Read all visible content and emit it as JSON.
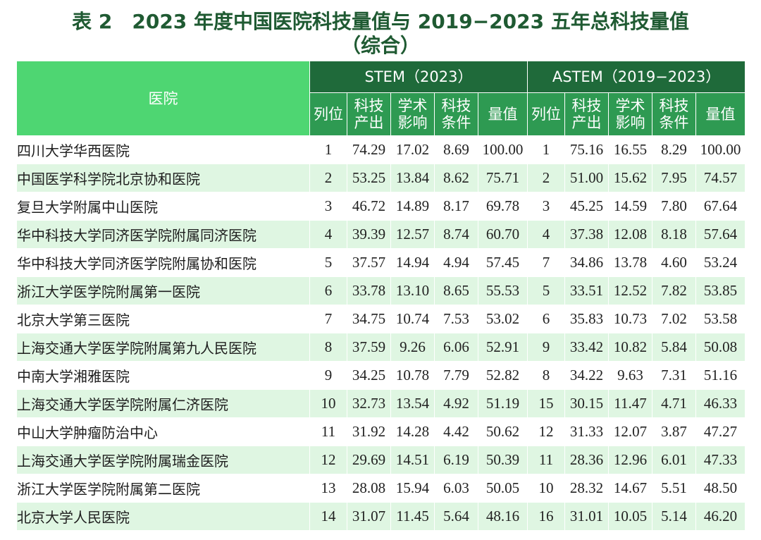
{
  "title": {
    "line1": "表 2　2023 年度中国医院科技量值与 2019−2023 五年总科技量值",
    "line2": "（综合）"
  },
  "table": {
    "hospital_header": "医院",
    "group_stem": "STEM（2023）",
    "group_astem": "ASTEM（2019−2023）",
    "sub_headers": [
      "列位",
      "科技\n产出",
      "学术\n影响",
      "科技\n条件",
      "量值"
    ],
    "rows": [
      {
        "name": "四川大学华西医院",
        "stem": [
          "1",
          "74.29",
          "17.02",
          "8.69",
          "100.00"
        ],
        "astem": [
          "1",
          "75.16",
          "16.55",
          "8.29",
          "100.00"
        ]
      },
      {
        "name": "中国医学科学院北京协和医院",
        "stem": [
          "2",
          "53.25",
          "13.84",
          "8.62",
          "75.71"
        ],
        "astem": [
          "2",
          "51.00",
          "15.62",
          "7.95",
          "74.57"
        ]
      },
      {
        "name": "复旦大学附属中山医院",
        "stem": [
          "3",
          "46.72",
          "14.89",
          "8.17",
          "69.78"
        ],
        "astem": [
          "3",
          "45.25",
          "14.59",
          "7.80",
          "67.64"
        ]
      },
      {
        "name": "华中科技大学同济医学院附属同济医院",
        "stem": [
          "4",
          "39.39",
          "12.57",
          "8.74",
          "60.70"
        ],
        "astem": [
          "4",
          "37.38",
          "12.08",
          "8.18",
          "57.64"
        ]
      },
      {
        "name": "华中科技大学同济医学院附属协和医院",
        "stem": [
          "5",
          "37.57",
          "14.94",
          "4.94",
          "57.45"
        ],
        "astem": [
          "7",
          "34.86",
          "13.78",
          "4.60",
          "53.24"
        ]
      },
      {
        "name": "浙江大学医学院附属第一医院",
        "stem": [
          "6",
          "33.78",
          "13.10",
          "8.65",
          "55.53"
        ],
        "astem": [
          "5",
          "33.51",
          "12.52",
          "7.82",
          "53.85"
        ]
      },
      {
        "name": "北京大学第三医院",
        "stem": [
          "7",
          "34.75",
          "10.74",
          "7.53",
          "53.02"
        ],
        "astem": [
          "6",
          "35.83",
          "10.73",
          "7.02",
          "53.58"
        ]
      },
      {
        "name": "上海交通大学医学院附属第九人民医院",
        "stem": [
          "8",
          "37.59",
          "9.26",
          "6.06",
          "52.91"
        ],
        "astem": [
          "9",
          "33.42",
          "10.82",
          "5.84",
          "50.08"
        ]
      },
      {
        "name": "中南大学湘雅医院",
        "stem": [
          "9",
          "34.25",
          "10.78",
          "7.79",
          "52.82"
        ],
        "astem": [
          "8",
          "34.22",
          "9.63",
          "7.31",
          "51.16"
        ]
      },
      {
        "name": "上海交通大学医学院附属仁济医院",
        "stem": [
          "10",
          "32.73",
          "13.54",
          "4.92",
          "51.19"
        ],
        "astem": [
          "15",
          "30.15",
          "11.47",
          "4.71",
          "46.33"
        ]
      },
      {
        "name": "中山大学肿瘤防治中心",
        "stem": [
          "11",
          "31.92",
          "14.28",
          "4.42",
          "50.62"
        ],
        "astem": [
          "12",
          "31.33",
          "12.07",
          "3.87",
          "47.27"
        ]
      },
      {
        "name": "上海交通大学医学院附属瑞金医院",
        "stem": [
          "12",
          "29.69",
          "14.51",
          "6.19",
          "50.39"
        ],
        "astem": [
          "11",
          "28.36",
          "12.96",
          "6.01",
          "47.33"
        ]
      },
      {
        "name": "浙江大学医学院附属第二医院",
        "stem": [
          "13",
          "28.08",
          "15.94",
          "6.03",
          "50.05"
        ],
        "astem": [
          "10",
          "28.32",
          "14.67",
          "5.51",
          "48.50"
        ]
      },
      {
        "name": "北京大学人民医院",
        "stem": [
          "14",
          "31.07",
          "11.45",
          "5.64",
          "48.16"
        ],
        "astem": [
          "16",
          "31.01",
          "10.05",
          "5.14",
          "46.20"
        ]
      }
    ]
  },
  "colors": {
    "title_text": "#1f5a32",
    "hospital_header_bg": "#4ed672",
    "group_header_bg": "#1f6a3a",
    "sub_header_bg": "#2e9a52",
    "row_alt_bg": "#dff6e2"
  }
}
